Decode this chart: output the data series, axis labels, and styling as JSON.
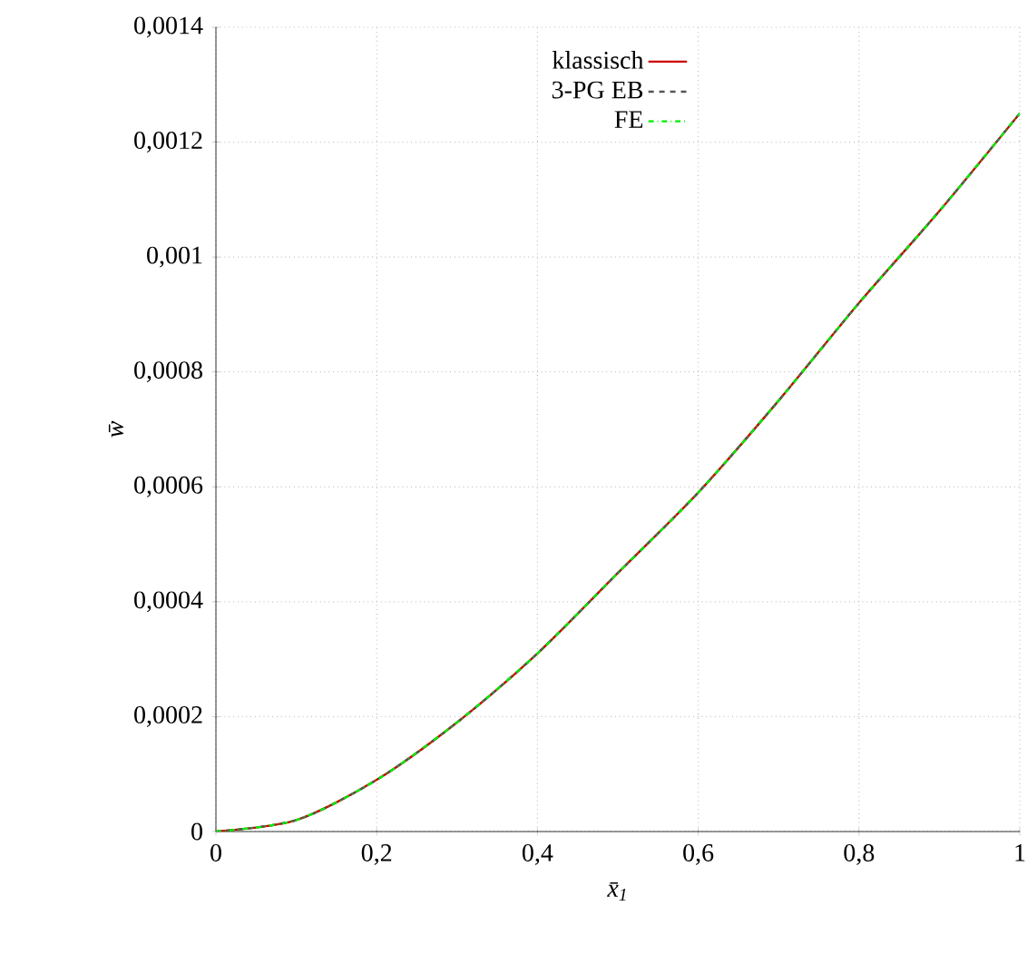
{
  "chart_data": {
    "type": "line",
    "xlabel": "x̄$_{1}$",
    "ylabel": "w̄",
    "x": [
      0,
      0.1,
      0.2,
      0.3,
      0.4,
      0.5,
      0.6,
      0.7,
      0.8,
      0.9,
      1
    ],
    "series": [
      {
        "name": "klassisch",
        "color": "#cc0000",
        "line_style": "solid",
        "values": [
          0,
          2e-05,
          9e-05,
          0.00019,
          0.00031,
          0.00045,
          0.00059,
          0.00075,
          0.00092,
          0.00108,
          0.00125
        ]
      },
      {
        "name": "3-PG EB",
        "color": "#555555",
        "line_style": "dashed",
        "values": [
          0,
          2e-05,
          9e-05,
          0.00019,
          0.00031,
          0.00045,
          0.00059,
          0.00075,
          0.00092,
          0.00108,
          0.00125
        ]
      },
      {
        "name": "FE",
        "color": "#00ee00",
        "line_style": "dashdot",
        "values": [
          0,
          2e-05,
          9e-05,
          0.00019,
          0.00031,
          0.00045,
          0.00059,
          0.00075,
          0.00092,
          0.00108,
          0.00125
        ]
      }
    ],
    "xlim": [
      0,
      1
    ],
    "ylim": [
      0,
      0.0014
    ],
    "xticks": [
      0,
      {
        "value": 0.2,
        "label": "0,2"
      },
      {
        "value": 0.4,
        "label": "0,4"
      },
      {
        "value": 0.6,
        "label": "0,6"
      },
      {
        "value": 0.8,
        "label": "0,8"
      },
      1
    ],
    "yticks": [
      0,
      {
        "value": 0.0002,
        "label": "0,0002"
      },
      {
        "value": 0.0004,
        "label": "0,0004"
      },
      {
        "value": 0.0006,
        "label": "0,0006"
      },
      {
        "value": 0.0008,
        "label": "0,0008"
      },
      {
        "value": 0.001,
        "label": "0,001"
      },
      {
        "value": 0.0012,
        "label": "0,0012"
      },
      {
        "value": 0.0014,
        "label": "0,0014"
      }
    ],
    "grid": true,
    "legend": "top"
  }
}
